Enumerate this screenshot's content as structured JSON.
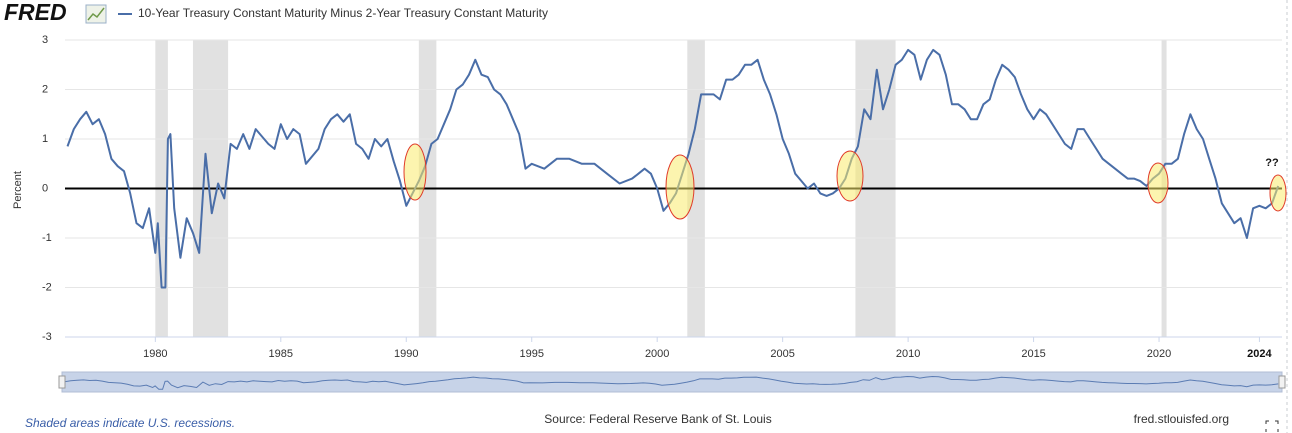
{
  "logo": "FRED",
  "chart_data": {
    "type": "line",
    "series": [
      {
        "name": "10-Year Treasury Constant Maturity Minus 2-Year Treasury Constant Maturity",
        "color": "#4a6ea8",
        "x": [
          1976.5,
          1976.75,
          1977,
          1977.25,
          1977.5,
          1977.75,
          1978,
          1978.25,
          1978.5,
          1978.75,
          1979,
          1979.25,
          1979.5,
          1979.75,
          1980,
          1980.1,
          1980.25,
          1980.4,
          1980.5,
          1980.6,
          1980.75,
          1981,
          1981.25,
          1981.5,
          1981.75,
          1982,
          1982.25,
          1982.5,
          1982.75,
          1983,
          1983.25,
          1983.5,
          1983.75,
          1984,
          1984.5,
          1984.75,
          1985,
          1985.25,
          1985.5,
          1985.75,
          1986,
          1986.5,
          1986.75,
          1987,
          1987.25,
          1987.5,
          1987.75,
          1988,
          1988.25,
          1988.5,
          1988.75,
          1989,
          1989.25,
          1989.5,
          1989.75,
          1990,
          1990.25,
          1990.5,
          1990.75,
          1991,
          1991.25,
          1991.5,
          1991.75,
          1992,
          1992.25,
          1992.5,
          1992.75,
          1993,
          1993.25,
          1993.5,
          1993.75,
          1994,
          1994.25,
          1994.5,
          1994.75,
          1995,
          1995.5,
          1996,
          1996.5,
          1997,
          1997.5,
          1998,
          1998.5,
          1999,
          1999.25,
          1999.5,
          1999.75,
          2000,
          2000.25,
          2000.5,
          2000.75,
          2001,
          2001.25,
          2001.5,
          2001.75,
          2002,
          2002.25,
          2002.5,
          2002.75,
          2003,
          2003.25,
          2003.5,
          2003.75,
          2004,
          2004.25,
          2004.5,
          2004.75,
          2005,
          2005.25,
          2005.5,
          2005.75,
          2006,
          2006.25,
          2006.5,
          2006.75,
          2007,
          2007.25,
          2007.5,
          2007.75,
          2008,
          2008.25,
          2008.5,
          2008.75,
          2009,
          2009.25,
          2009.5,
          2009.75,
          2010,
          2010.25,
          2010.5,
          2010.75,
          2011,
          2011.25,
          2011.5,
          2011.75,
          2012,
          2012.25,
          2012.5,
          2012.75,
          2013,
          2013.25,
          2013.5,
          2013.75,
          2014,
          2014.25,
          2014.5,
          2014.75,
          2015,
          2015.25,
          2015.5,
          2015.75,
          2016,
          2016.25,
          2016.5,
          2016.75,
          2017,
          2017.25,
          2017.5,
          2017.75,
          2018,
          2018.25,
          2018.5,
          2018.75,
          2019,
          2019.25,
          2019.5,
          2019.75,
          2020,
          2020.25,
          2020.5,
          2020.75,
          2021,
          2021.25,
          2021.5,
          2021.75,
          2022,
          2022.25,
          2022.5,
          2022.75,
          2023,
          2023.25,
          2023.5,
          2023.75,
          2024,
          2024.25,
          2024.5,
          2024.75
        ],
        "values": [
          0.85,
          1.2,
          1.4,
          1.55,
          1.3,
          1.4,
          1.1,
          0.6,
          0.45,
          0.35,
          -0.1,
          -0.7,
          -0.8,
          -0.4,
          -1.3,
          -0.7,
          -2.0,
          -2.0,
          1.0,
          1.1,
          -0.4,
          -1.4,
          -0.6,
          -0.9,
          -1.3,
          0.7,
          -0.5,
          0.1,
          -0.2,
          0.9,
          0.8,
          1.1,
          0.8,
          1.2,
          0.9,
          0.8,
          1.3,
          1.0,
          1.2,
          1.1,
          0.5,
          0.8,
          1.2,
          1.4,
          1.5,
          1.35,
          1.5,
          0.9,
          0.8,
          0.6,
          1.0,
          0.85,
          1.0,
          0.55,
          0.15,
          -0.35,
          -0.1,
          0.15,
          0.45,
          0.9,
          1.0,
          1.3,
          1.6,
          2.0,
          2.1,
          2.3,
          2.6,
          2.3,
          2.25,
          2.0,
          1.9,
          1.7,
          1.4,
          1.1,
          0.4,
          0.5,
          0.4,
          0.6,
          0.6,
          0.5,
          0.5,
          0.3,
          0.1,
          0.2,
          0.3,
          0.4,
          0.3,
          0.0,
          -0.45,
          -0.3,
          -0.1,
          0.3,
          0.7,
          1.2,
          1.9,
          1.9,
          1.9,
          1.8,
          2.2,
          2.2,
          2.3,
          2.5,
          2.5,
          2.6,
          2.2,
          1.9,
          1.5,
          1.0,
          0.7,
          0.3,
          0.15,
          0.0,
          0.1,
          -0.1,
          -0.15,
          -0.1,
          0.0,
          0.2,
          0.6,
          0.85,
          1.6,
          1.4,
          2.4,
          1.6,
          2.0,
          2.5,
          2.6,
          2.8,
          2.7,
          2.2,
          2.6,
          2.8,
          2.7,
          2.3,
          1.7,
          1.7,
          1.6,
          1.4,
          1.4,
          1.7,
          1.8,
          2.2,
          2.5,
          2.4,
          2.25,
          1.9,
          1.6,
          1.4,
          1.6,
          1.5,
          1.3,
          1.1,
          0.9,
          0.8,
          1.2,
          1.2,
          1.0,
          0.8,
          0.6,
          0.5,
          0.4,
          0.3,
          0.2,
          0.2,
          0.15,
          0.05,
          0.2,
          0.3,
          0.5,
          0.5,
          0.6,
          1.1,
          1.5,
          1.2,
          1.0,
          0.6,
          0.2,
          -0.3,
          -0.5,
          -0.7,
          -0.6,
          -1.0,
          -0.4,
          -0.35,
          -0.4,
          -0.3,
          0.05
        ]
      }
    ],
    "recessions": [
      [
        1980.0,
        1980.5
      ],
      [
        1981.5,
        1982.9
      ],
      [
        1990.5,
        1991.2
      ],
      [
        2001.2,
        2001.9
      ],
      [
        2007.9,
        2009.5
      ],
      [
        2020.1,
        2020.3
      ]
    ],
    "recession_color": "#e1e1e1",
    "xlim": [
      1976.4,
      2024.9
    ],
    "xticks": [
      1980,
      1985,
      1990,
      1995,
      2000,
      2005,
      2010,
      2015,
      2020,
      2024
    ],
    "ylim": [
      -3,
      3
    ],
    "yticks": [
      -3,
      -2,
      -1,
      0,
      1,
      2,
      3
    ],
    "ylabel": "Percent",
    "grid": true,
    "annotation": "??",
    "note": "Shaded areas indicate U.S. recessions.",
    "source": "Source: Federal Reserve Bank of St. Louis",
    "url": "fred.stlouisfed.org"
  }
}
